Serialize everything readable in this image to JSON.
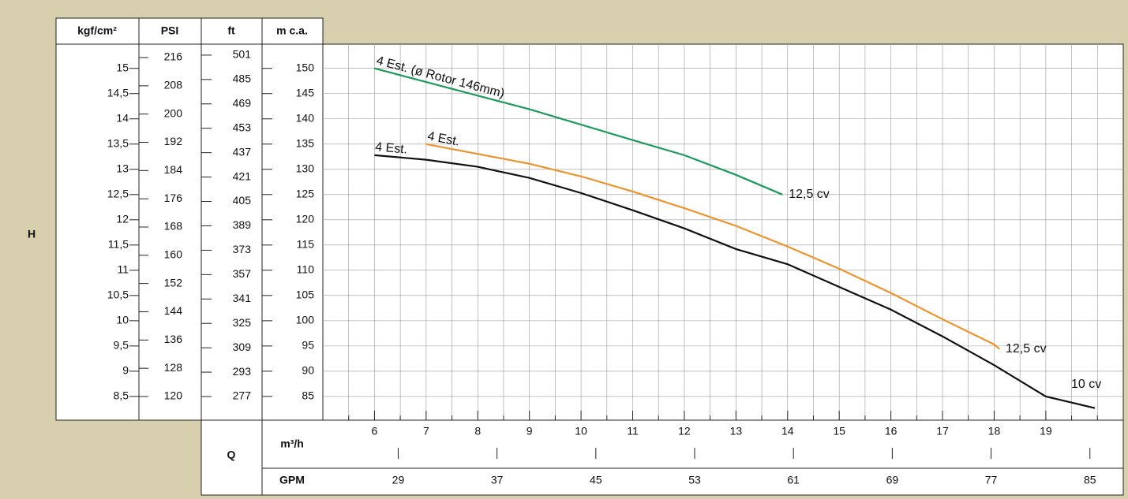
{
  "chart_data": {
    "type": "line",
    "y_label": "H",
    "x_label": "Q",
    "grid": true,
    "x_unit": "m³/h",
    "xlim": [
      5,
      20.5
    ],
    "xticks": [
      6,
      7,
      8,
      9,
      10,
      11,
      12,
      13,
      14,
      15,
      16,
      17,
      18,
      19
    ],
    "x_minor_ticks": [
      5.5,
      6.5,
      7.5,
      8.5,
      9.5,
      10.5,
      11.5,
      12.5,
      13.5,
      14.5,
      15.5,
      16.5,
      17.5,
      18.5,
      19.5,
      20
    ],
    "x2_unit": "GPM",
    "x2lim": [
      22.9,
      87.7
    ],
    "x2ticks": [
      29,
      37,
      45,
      53,
      61,
      69,
      77,
      85
    ],
    "y_unit": "m c.a.",
    "ylim": [
      80.3,
      154.8
    ],
    "yticks": [
      150,
      145,
      140,
      135,
      130,
      125,
      120,
      115,
      110,
      105,
      100,
      95,
      90,
      85
    ],
    "other_y_axes": [
      {
        "unit": "kgf/cm²",
        "lim": [
          8.03,
          15.48
        ],
        "ticks": [
          15,
          {
            "value": 14.5,
            "label": "14,5"
          },
          14,
          {
            "value": 13.5,
            "label": "13,5"
          },
          13,
          {
            "value": 12.5,
            "label": "12,5"
          },
          12,
          {
            "value": 11.5,
            "label": "11,5"
          },
          11,
          {
            "value": 10.5,
            "label": "10,5"
          },
          10,
          {
            "value": 9.5,
            "label": "9,5"
          },
          9,
          {
            "value": 8.5,
            "label": "8,5"
          }
        ]
      },
      {
        "unit": "PSI",
        "lim": [
          113.3,
          219.8
        ],
        "ticks": [
          216,
          208,
          200,
          192,
          184,
          176,
          168,
          160,
          152,
          144,
          136,
          128,
          120
        ]
      },
      {
        "unit": "ft",
        "lim": [
          261.5,
          508.2
        ],
        "ticks": [
          501,
          485,
          469,
          453,
          437,
          421,
          405,
          389,
          373,
          357,
          341,
          325,
          309,
          293,
          277
        ]
      }
    ],
    "series": [
      {
        "name": "4 Est. (ø Rotor 146mm)",
        "power": "12,5 cv",
        "color": "#1b9a5c",
        "x": [
          6,
          9,
          11,
          12,
          13,
          13.9
        ],
        "values": [
          150,
          141.9,
          135.8,
          132.8,
          128.9,
          125
        ]
      },
      {
        "name": "4 Est.",
        "power": "12,5 cv",
        "color": "#f0922b",
        "x": [
          7,
          9,
          10,
          11,
          12,
          13,
          14,
          15,
          16,
          17,
          18,
          18.1
        ],
        "values": [
          135,
          131.1,
          128.6,
          125.6,
          122.3,
          118.8,
          114.7,
          110.3,
          105.5,
          100.3,
          95.3,
          94.4
        ]
      },
      {
        "name": "4 Est.",
        "power": "10 cv",
        "color": "#111111",
        "x": [
          6,
          7,
          8,
          9,
          10,
          11,
          12,
          13,
          14,
          15,
          16,
          17,
          18,
          19,
          19.95
        ],
        "values": [
          132.8,
          131.9,
          130.5,
          128.3,
          125.3,
          121.9,
          118.3,
          114.2,
          111.2,
          106.7,
          102.2,
          96.9,
          91.2,
          85,
          82.7
        ]
      }
    ]
  }
}
